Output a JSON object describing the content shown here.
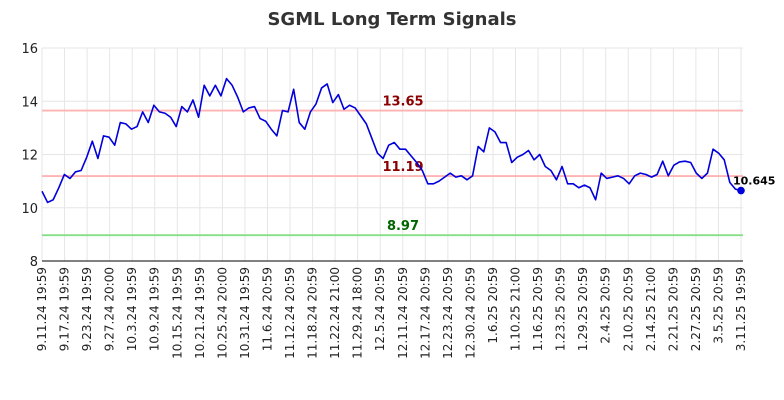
{
  "chart_data": {
    "type": "line",
    "title": "SGML Long Term Signals",
    "xlabel": "",
    "ylabel": "",
    "ylim": [
      8,
      16
    ],
    "yticks": [
      8,
      10,
      12,
      14,
      16
    ],
    "grid": true,
    "legend": "none",
    "colors": {
      "line": "#0000dd",
      "upper": "#ffb3b3",
      "middle": "#ffb3b3",
      "lower": "#88dd88",
      "upper_text": "#8b0000",
      "middle_text": "#8b0000",
      "lower_text": "#006400",
      "grid": "#e6e6e6",
      "axis": "#000000"
    },
    "reference_lines": [
      {
        "label": "13.65",
        "value": 13.65,
        "role": "upper"
      },
      {
        "label": "11.19",
        "value": 11.19,
        "role": "middle"
      },
      {
        "label": "8.97",
        "value": 8.97,
        "role": "lower"
      }
    ],
    "x_tick_labels": [
      "9.11.24 19:59",
      "9.17.24 19:59",
      "9.23.24 19:59",
      "9.27.24 20:00",
      "10.3.24 19:59",
      "10.9.24 19:59",
      "10.15.24 19:59",
      "10.21.24 19:59",
      "10.25.24 20:00",
      "10.31.24 19:59",
      "11.6.24 20:59",
      "11.12.24 20:59",
      "11.18.24 20:59",
      "11.22.24 21:00",
      "11.29.24 18:00",
      "12.5.24 20:59",
      "12.11.24 20:59",
      "12.17.24 20:59",
      "12.23.24 20:59",
      "12.30.24 20:59",
      "1.6.25 20:59",
      "1.10.25 21:00",
      "1.16.25 20:59",
      "1.23.25 20:59",
      "1.29.25 20:59",
      "2.4.25 20:59",
      "2.10.25 20:59",
      "2.14.25 21:00",
      "2.21.25 20:59",
      "2.27.25 20:59",
      "3.5.25 20:59",
      "3.11.25 19:59"
    ],
    "last_value_label": "10.645",
    "series": [
      {
        "values": [
          10.62,
          10.2,
          10.3,
          10.75,
          11.25,
          11.1,
          11.35,
          11.4,
          11.9,
          12.5,
          11.85,
          12.7,
          12.65,
          12.35,
          13.2,
          13.15,
          12.95,
          13.05,
          13.6,
          13.2,
          13.85,
          13.6,
          13.55,
          13.4,
          13.05,
          13.8,
          13.6,
          14.05,
          13.4,
          14.6,
          14.2,
          14.6,
          14.2,
          14.85,
          14.6,
          14.15,
          13.6,
          13.75,
          13.8,
          13.35,
          13.25,
          12.95,
          12.7,
          13.65,
          13.6,
          14.45,
          13.2,
          12.95,
          13.6,
          13.9,
          14.5,
          14.65,
          13.95,
          14.25,
          13.7,
          13.85,
          13.75,
          13.45,
          13.15,
          12.6,
          12.05,
          11.85,
          12.35,
          12.45,
          12.2,
          12.2,
          11.95,
          11.7,
          11.4,
          10.9,
          10.9,
          11.0,
          11.15,
          11.3,
          11.15,
          11.2,
          11.05,
          11.2,
          12.3,
          12.1,
          13.0,
          12.85,
          12.45,
          12.45,
          11.7,
          11.9,
          12.0,
          12.15,
          11.8,
          12.0,
          11.55,
          11.4,
          11.05,
          11.55,
          10.9,
          10.9,
          10.75,
          10.85,
          10.75,
          10.3,
          11.3,
          11.1,
          11.15,
          11.2,
          11.1,
          10.9,
          11.2,
          11.3,
          11.25,
          11.15,
          11.25,
          11.75,
          11.2,
          11.6,
          11.72,
          11.75,
          11.7,
          11.3,
          11.1,
          11.3,
          12.2,
          12.05,
          11.8,
          10.95,
          10.7,
          10.645
        ]
      }
    ]
  }
}
